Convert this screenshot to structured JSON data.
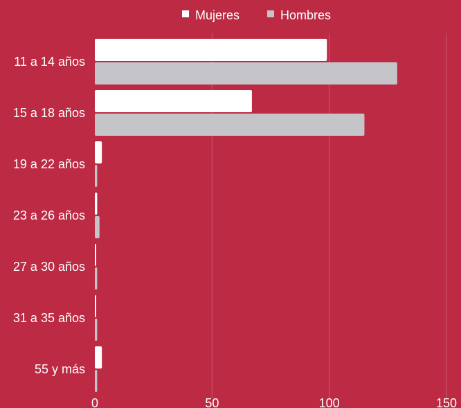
{
  "colors": {
    "background": "#bc2a44",
    "mujeres": "#ffffff",
    "hombres": "#c4c4c9",
    "grid": "#cd5a6e"
  },
  "chart_data": {
    "type": "bar",
    "orientation": "horizontal",
    "categories": [
      "11 a 14 años",
      "15 a 18 años",
      "19 a 22 años",
      "23 a 26 años",
      "27 a 30 años",
      "31 a 35 años",
      "55 y más"
    ],
    "series": [
      {
        "name": "Mujeres",
        "values": [
          99,
          67,
          3,
          1,
          0,
          0,
          3
        ]
      },
      {
        "name": "Hombres",
        "values": [
          129,
          115,
          1,
          2,
          1,
          1,
          1
        ]
      }
    ],
    "xlim": [
      0,
      150
    ],
    "xticks": [
      "0",
      "50",
      "100",
      "150"
    ],
    "grid": true,
    "legend_position": "top-center"
  }
}
